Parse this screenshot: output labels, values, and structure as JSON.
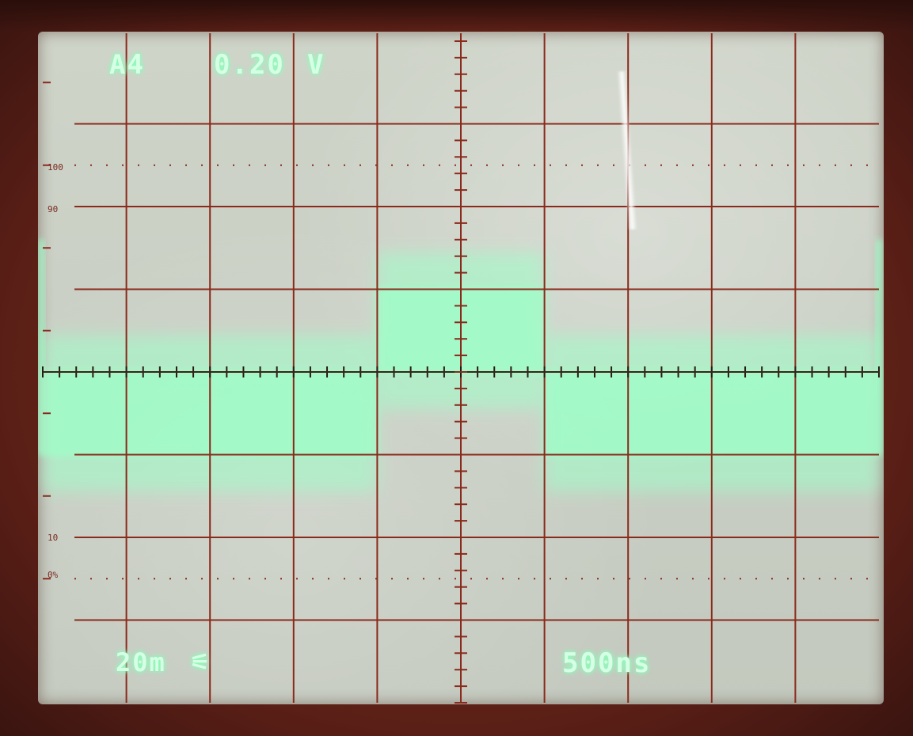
{
  "scope": {
    "channel_label": "A4",
    "volts_per_div": "0.20",
    "volts_unit": "V",
    "bandwidth_label": "20m",
    "timebase_label": "500ns"
  },
  "graticule_labels": {
    "top_100": "100",
    "top_90": "90",
    "bottom_10": "10",
    "bottom_0": "0%"
  },
  "trace": {
    "color": "#9effc8",
    "grid_color": "#8a2a1c",
    "divisions_x": 10,
    "divisions_y": 8,
    "segments": [
      {
        "start_div": 0,
        "end_div": 4,
        "level_div": -0.5
      },
      {
        "start_div": 4,
        "end_div": 6,
        "level_div": 0.5
      },
      {
        "start_div": 6,
        "end_div": 10,
        "level_div": -0.5
      }
    ]
  }
}
